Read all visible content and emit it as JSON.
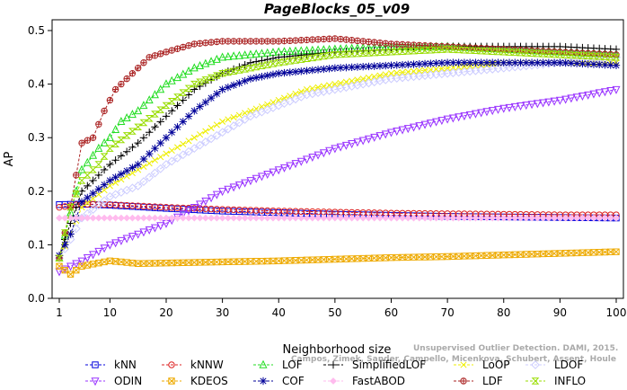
{
  "chart_data": {
    "type": "line",
    "title": "PageBlocks_05_v09",
    "xlabel": "Neighborhood size",
    "ylabel": "AP",
    "xlim": [
      0,
      100
    ],
    "ylim": [
      0,
      0.5
    ],
    "xticks": [
      1,
      10,
      20,
      30,
      40,
      50,
      60,
      70,
      80,
      90,
      100
    ],
    "xtick_labels": [
      "1",
      "10",
      "20",
      "30",
      "40",
      "50",
      "60",
      "70",
      "80",
      "90",
      "100"
    ],
    "yticks": [
      0.0,
      0.1,
      0.2,
      0.3,
      0.4,
      0.5
    ],
    "ytick_labels": [
      "0.0",
      "0.1",
      "0.2",
      "0.3",
      "0.4",
      "0.5"
    ],
    "grid": false,
    "legend_position": "bottom",
    "credit": "Campos, Zimek, Sander, Campello, Micenkova, Schubert, Assent, Houle",
    "credit_partial": "Unsupervised Outlier Detection. DAMI, 2015.",
    "series": [
      {
        "name": "kNN",
        "color": "#0000dd",
        "marker": "square",
        "points": [
          [
            1,
            0.175
          ],
          [
            5,
            0.176
          ],
          [
            10,
            0.174
          ],
          [
            20,
            0.168
          ],
          [
            30,
            0.163
          ],
          [
            40,
            0.16
          ],
          [
            50,
            0.157
          ],
          [
            60,
            0.155
          ],
          [
            70,
            0.153
          ],
          [
            80,
            0.152
          ],
          [
            90,
            0.151
          ],
          [
            100,
            0.15
          ]
        ]
      },
      {
        "name": "kNNW",
        "color": "#dd2222",
        "marker": "circle",
        "points": [
          [
            1,
            0.17
          ],
          [
            5,
            0.176
          ],
          [
            10,
            0.175
          ],
          [
            20,
            0.17
          ],
          [
            30,
            0.166
          ],
          [
            40,
            0.163
          ],
          [
            50,
            0.161
          ],
          [
            60,
            0.159
          ],
          [
            70,
            0.158
          ],
          [
            80,
            0.157
          ],
          [
            90,
            0.156
          ],
          [
            100,
            0.156
          ]
        ]
      },
      {
        "name": "LOF",
        "color": "#22dd22",
        "marker": "triangle-up",
        "points": [
          [
            1,
            0.075
          ],
          [
            3,
            0.16
          ],
          [
            5,
            0.24
          ],
          [
            8,
            0.28
          ],
          [
            10,
            0.3
          ],
          [
            12,
            0.33
          ],
          [
            15,
            0.35
          ],
          [
            18,
            0.38
          ],
          [
            20,
            0.4
          ],
          [
            25,
            0.43
          ],
          [
            30,
            0.45
          ],
          [
            40,
            0.46
          ],
          [
            50,
            0.465
          ],
          [
            60,
            0.47
          ],
          [
            70,
            0.47
          ],
          [
            80,
            0.465
          ],
          [
            90,
            0.46
          ],
          [
            100,
            0.455
          ]
        ]
      },
      {
        "name": "SimplifiedLOF",
        "color": "#000000",
        "marker": "plus",
        "points": [
          [
            1,
            0.08
          ],
          [
            3,
            0.14
          ],
          [
            5,
            0.2
          ],
          [
            8,
            0.23
          ],
          [
            10,
            0.25
          ],
          [
            15,
            0.29
          ],
          [
            20,
            0.34
          ],
          [
            25,
            0.39
          ],
          [
            30,
            0.42
          ],
          [
            35,
            0.44
          ],
          [
            40,
            0.45
          ],
          [
            50,
            0.46
          ],
          [
            60,
            0.465
          ],
          [
            70,
            0.47
          ],
          [
            80,
            0.47
          ],
          [
            90,
            0.47
          ],
          [
            100,
            0.465
          ]
        ]
      },
      {
        "name": "LoOP",
        "color": "#eeee00",
        "marker": "x",
        "points": [
          [
            1,
            0.075
          ],
          [
            3,
            0.12
          ],
          [
            5,
            0.17
          ],
          [
            10,
            0.21
          ],
          [
            15,
            0.24
          ],
          [
            20,
            0.27
          ],
          [
            25,
            0.3
          ],
          [
            30,
            0.33
          ],
          [
            35,
            0.35
          ],
          [
            40,
            0.37
          ],
          [
            45,
            0.39
          ],
          [
            50,
            0.4
          ],
          [
            60,
            0.42
          ],
          [
            70,
            0.43
          ],
          [
            80,
            0.44
          ],
          [
            90,
            0.44
          ],
          [
            100,
            0.44
          ]
        ]
      },
      {
        "name": "LDOF",
        "color": "#ccccff",
        "marker": "diamond",
        "points": [
          [
            1,
            0.075
          ],
          [
            3,
            0.11
          ],
          [
            5,
            0.15
          ],
          [
            10,
            0.19
          ],
          [
            15,
            0.21
          ],
          [
            20,
            0.25
          ],
          [
            25,
            0.28
          ],
          [
            30,
            0.31
          ],
          [
            35,
            0.34
          ],
          [
            40,
            0.36
          ],
          [
            45,
            0.38
          ],
          [
            50,
            0.39
          ],
          [
            60,
            0.41
          ],
          [
            70,
            0.42
          ],
          [
            80,
            0.43
          ],
          [
            90,
            0.44
          ],
          [
            100,
            0.45
          ]
        ]
      },
      {
        "name": "ODIN",
        "color": "#9933ff",
        "marker": "triangle-down",
        "points": [
          [
            1,
            0.05
          ],
          [
            5,
            0.07
          ],
          [
            10,
            0.1
          ],
          [
            15,
            0.12
          ],
          [
            20,
            0.14
          ],
          [
            25,
            0.17
          ],
          [
            30,
            0.2
          ],
          [
            35,
            0.22
          ],
          [
            40,
            0.24
          ],
          [
            45,
            0.26
          ],
          [
            50,
            0.28
          ],
          [
            60,
            0.31
          ],
          [
            70,
            0.335
          ],
          [
            80,
            0.355
          ],
          [
            90,
            0.37
          ],
          [
            100,
            0.39
          ]
        ]
      },
      {
        "name": "KDEOS",
        "color": "#eeaa00",
        "marker": "square-x",
        "points": [
          [
            1,
            0.06
          ],
          [
            3,
            0.045
          ],
          [
            5,
            0.06
          ],
          [
            10,
            0.07
          ],
          [
            15,
            0.065
          ],
          [
            20,
            0.066
          ],
          [
            30,
            0.068
          ],
          [
            40,
            0.07
          ],
          [
            50,
            0.073
          ],
          [
            60,
            0.076
          ],
          [
            70,
            0.078
          ],
          [
            80,
            0.081
          ],
          [
            90,
            0.084
          ],
          [
            100,
            0.087
          ]
        ]
      },
      {
        "name": "COF",
        "color": "#000099",
        "marker": "asterisk",
        "points": [
          [
            1,
            0.08
          ],
          [
            3,
            0.12
          ],
          [
            5,
            0.18
          ],
          [
            10,
            0.22
          ],
          [
            15,
            0.25
          ],
          [
            20,
            0.3
          ],
          [
            25,
            0.35
          ],
          [
            30,
            0.39
          ],
          [
            35,
            0.41
          ],
          [
            40,
            0.42
          ],
          [
            50,
            0.43
          ],
          [
            60,
            0.435
          ],
          [
            70,
            0.44
          ],
          [
            80,
            0.44
          ],
          [
            90,
            0.44
          ],
          [
            100,
            0.435
          ]
        ]
      },
      {
        "name": "FastABOD",
        "color": "#ffbbee",
        "marker": "diamond-filled",
        "points": [
          [
            1,
            0.15
          ],
          [
            5,
            0.15
          ],
          [
            10,
            0.15
          ],
          [
            20,
            0.15
          ],
          [
            30,
            0.15
          ],
          [
            40,
            0.15
          ],
          [
            50,
            0.15
          ],
          [
            60,
            0.15
          ],
          [
            70,
            0.15
          ],
          [
            80,
            0.15
          ],
          [
            90,
            0.15
          ],
          [
            100,
            0.15
          ]
        ]
      },
      {
        "name": "LDF",
        "color": "#aa2222",
        "marker": "circle-plus",
        "points": [
          [
            1,
            0.075
          ],
          [
            3,
            0.17
          ],
          [
            5,
            0.29
          ],
          [
            7,
            0.3
          ],
          [
            9,
            0.35
          ],
          [
            11,
            0.39
          ],
          [
            13,
            0.41
          ],
          [
            15,
            0.43
          ],
          [
            17,
            0.45
          ],
          [
            20,
            0.46
          ],
          [
            25,
            0.475
          ],
          [
            30,
            0.48
          ],
          [
            40,
            0.48
          ],
          [
            50,
            0.485
          ],
          [
            55,
            0.48
          ],
          [
            60,
            0.475
          ],
          [
            70,
            0.47
          ],
          [
            80,
            0.465
          ],
          [
            90,
            0.46
          ],
          [
            100,
            0.455
          ]
        ]
      },
      {
        "name": "INFLO",
        "color": "#99dd00",
        "marker": "hourglass",
        "points": [
          [
            1,
            0.075
          ],
          [
            3,
            0.17
          ],
          [
            5,
            0.22
          ],
          [
            8,
            0.25
          ],
          [
            10,
            0.28
          ],
          [
            15,
            0.32
          ],
          [
            20,
            0.36
          ],
          [
            25,
            0.4
          ],
          [
            30,
            0.42
          ],
          [
            40,
            0.44
          ],
          [
            50,
            0.455
          ],
          [
            60,
            0.46
          ],
          [
            70,
            0.465
          ],
          [
            80,
            0.46
          ],
          [
            90,
            0.455
          ],
          [
            100,
            0.45
          ]
        ]
      }
    ]
  }
}
